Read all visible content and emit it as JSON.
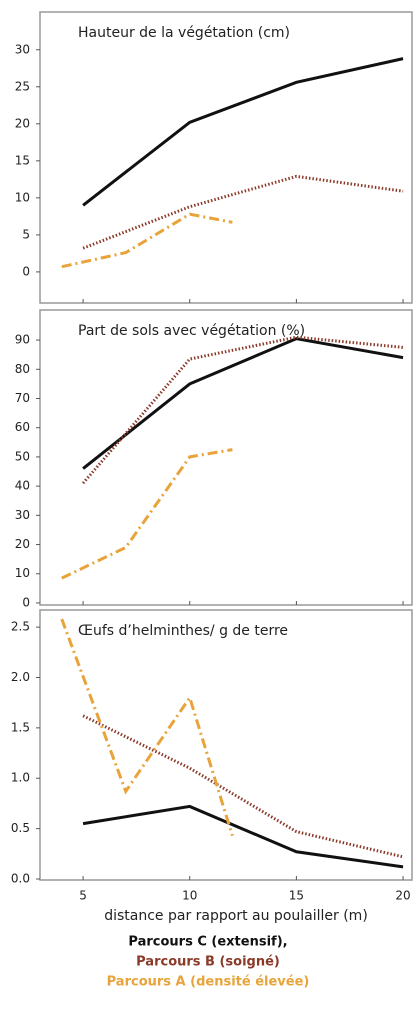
{
  "chart_data": [
    {
      "type": "line",
      "title": "Hauteur de la végétation (cm)",
      "xlim": [
        2.98,
        20.42
      ],
      "xticks": [
        5,
        10,
        15,
        20
      ],
      "ylim": [
        -4.2,
        35.1
      ],
      "yticks": [
        0,
        5,
        10,
        15,
        20,
        25,
        30
      ],
      "series": [
        {
          "color": "#111111",
          "style": "solid",
          "x": [
            5,
            10,
            15,
            20
          ],
          "values": [
            9,
            20.2,
            25.6,
            28.8
          ]
        },
        {
          "color": "#8b3a2a",
          "style": "dotted",
          "x": [
            5,
            10,
            15,
            20
          ],
          "values": [
            3.2,
            8.8,
            12.9,
            10.9
          ]
        },
        {
          "color": "#e8a33a",
          "style": "dashdot",
          "x": [
            4,
            7,
            10,
            12
          ],
          "values": [
            0.7,
            2.6,
            7.8,
            6.7
          ]
        }
      ]
    },
    {
      "type": "line",
      "title": "Part de sols avec végétation (%)",
      "xlim": [
        2.98,
        20.42
      ],
      "xticks": [
        5,
        10,
        15,
        20
      ],
      "ylim": [
        -0.7,
        100.3
      ],
      "yticks": [
        0,
        10,
        20,
        30,
        40,
        50,
        60,
        70,
        80,
        90
      ],
      "series": [
        {
          "color": "#111111",
          "style": "solid",
          "x": [
            5,
            10,
            15,
            20
          ],
          "values": [
            46,
            75,
            90.5,
            84
          ]
        },
        {
          "color": "#8b3a2a",
          "style": "dotted",
          "x": [
            5,
            10,
            15,
            20
          ],
          "values": [
            41,
            83.5,
            91,
            87.5
          ]
        },
        {
          "color": "#e8a33a",
          "style": "dashdot",
          "x": [
            4,
            7,
            10,
            12
          ],
          "values": [
            8.5,
            19,
            50,
            52.5
          ]
        }
      ]
    },
    {
      "type": "line",
      "title": "Œufs d’helminthes/ g de terre",
      "xlabel": "distance par rapport au poulailler (m)",
      "xlim": [
        2.98,
        20.42
      ],
      "xticks": [
        5,
        10,
        15,
        20
      ],
      "ylim": [
        -0.01,
        2.67
      ],
      "yticks": [
        {
          "value": 0,
          "label": "0.0"
        },
        0.5,
        {
          "value": 1,
          "label": "1.0"
        },
        1.5,
        {
          "value": 2,
          "label": "2.0"
        },
        2.5
      ],
      "series": [
        {
          "name": "Parcours C (extensif),",
          "color": "#111111",
          "style": "solid",
          "x": [
            5,
            10,
            15,
            20
          ],
          "values": [
            0.55,
            0.72,
            0.27,
            0.12
          ]
        },
        {
          "name": "Parcours B (soigné)",
          "color": "#8b3a2a",
          "style": "dotted",
          "x": [
            5,
            10,
            15,
            20
          ],
          "values": [
            1.62,
            1.1,
            0.47,
            0.22
          ]
        },
        {
          "name": "Parcours A (densité élevée)",
          "color": "#e8a33a",
          "style": "dashdot",
          "x": [
            4,
            7,
            10,
            12
          ],
          "values": [
            2.58,
            0.87,
            1.8,
            0.43
          ]
        }
      ]
    }
  ]
}
